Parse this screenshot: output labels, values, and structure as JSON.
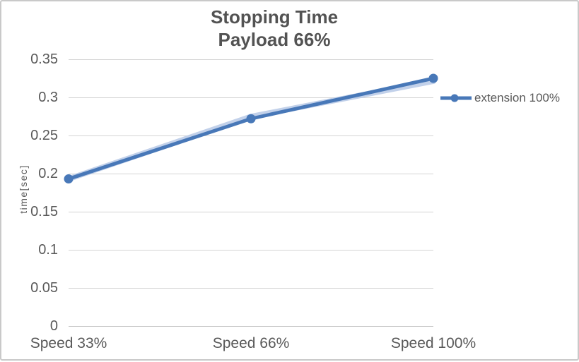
{
  "chart": {
    "title_line1": "Stopping Time",
    "title_line2": "Payload 66%",
    "y_axis_title": "time[sec]",
    "legend": {
      "items": [
        {
          "label": "extension 100%"
        }
      ]
    }
  },
  "chart_data": {
    "type": "line",
    "title": "Stopping Time Payload 66%",
    "xlabel": "",
    "ylabel": "time[sec]",
    "categories": [
      "Speed 33%",
      "Speed 66%",
      "Speed 100%"
    ],
    "series": [
      {
        "name": "extension 100%",
        "values": [
          0.193,
          0.272,
          0.325
        ],
        "color": "#4878b8"
      }
    ],
    "ylim": [
      0,
      0.35
    ],
    "ytick_labels": [
      "0",
      "0.05",
      "0.1",
      "0.15",
      "0.2",
      "0.25",
      "0.3",
      "0.35"
    ],
    "grid": true,
    "legend_position": "right",
    "marker": "circle"
  },
  "colors": {
    "line": "#4878b8",
    "halo": "#b7c9e6",
    "gridline": "#d4d4d4",
    "text": "#595959",
    "title": "#535353",
    "border": "#c9c9c9"
  }
}
